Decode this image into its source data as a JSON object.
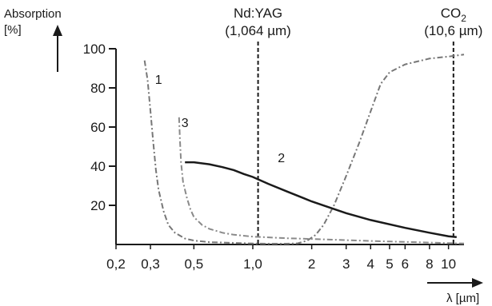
{
  "chart_data": {
    "type": "line",
    "xscale": "log",
    "xlim": [
      0.2,
      12
    ],
    "ylim": [
      0,
      100
    ],
    "ylabel_line1": "Absorption",
    "ylabel_line2": "[%]",
    "xlabel": "λ [µm]",
    "xticks": [
      {
        "value": 0.2,
        "label": "0,2"
      },
      {
        "value": 0.3,
        "label": "0,3"
      },
      {
        "value": 0.5,
        "label": "0,5"
      },
      {
        "value": 1.0,
        "label": "1,0"
      },
      {
        "value": 2,
        "label": "2"
      },
      {
        "value": 3,
        "label": "3"
      },
      {
        "value": 4,
        "label": "4"
      },
      {
        "value": 5,
        "label": "5"
      },
      {
        "value": 6,
        "label": "6"
      },
      {
        "value": 8,
        "label": "8"
      },
      {
        "value": 10,
        "label": "10"
      }
    ],
    "yticks": [
      {
        "value": 20,
        "label": "20"
      },
      {
        "value": 40,
        "label": "40"
      },
      {
        "value": 60,
        "label": "60"
      },
      {
        "value": 80,
        "label": "80"
      },
      {
        "value": 100,
        "label": "100"
      }
    ],
    "markers": [
      {
        "x": 1.064,
        "line1": "Nd:YAG",
        "line2": "(1,064 µm)"
      },
      {
        "x": 10.6,
        "line1_main": "CO",
        "line1_sub": "2",
        "line2": "(10,6 µm)"
      }
    ],
    "series": [
      {
        "label": "1",
        "style": "dashdot",
        "color": "#777777",
        "points": [
          [
            0.28,
            94
          ],
          [
            0.29,
            84
          ],
          [
            0.3,
            68
          ],
          [
            0.31,
            52
          ],
          [
            0.32,
            38
          ],
          [
            0.33,
            28
          ],
          [
            0.35,
            17
          ],
          [
            0.37,
            10
          ],
          [
            0.4,
            6
          ],
          [
            0.45,
            3
          ],
          [
            0.5,
            2
          ],
          [
            0.6,
            1.2
          ],
          [
            0.8,
            0.8
          ],
          [
            1.0,
            0.5
          ],
          [
            1.2,
            0.4
          ],
          [
            1.5,
            0.4
          ],
          [
            1.7,
            0.6
          ],
          [
            1.9,
            2
          ],
          [
            2.1,
            5
          ],
          [
            2.3,
            10
          ],
          [
            2.6,
            20
          ],
          [
            3.0,
            35
          ],
          [
            3.5,
            52
          ],
          [
            4.0,
            68
          ],
          [
            4.5,
            82
          ],
          [
            5.0,
            88
          ],
          [
            6.0,
            92
          ],
          [
            8.0,
            95
          ],
          [
            10.0,
            96
          ],
          [
            12.0,
            97
          ]
        ]
      },
      {
        "label": "2",
        "style": "solid",
        "color": "#1a1a1a",
        "points": [
          [
            0.45,
            42
          ],
          [
            0.5,
            42
          ],
          [
            0.6,
            41
          ],
          [
            0.7,
            39.5
          ],
          [
            0.8,
            38
          ],
          [
            0.9,
            36
          ],
          [
            1.0,
            34.5
          ],
          [
            1.2,
            31
          ],
          [
            1.5,
            27
          ],
          [
            2.0,
            22
          ],
          [
            3.0,
            16
          ],
          [
            4.0,
            12.5
          ],
          [
            6.0,
            8.5
          ],
          [
            8.0,
            6
          ],
          [
            10.0,
            4.2
          ],
          [
            11.0,
            3.8
          ]
        ]
      },
      {
        "label": "3",
        "style": "dashdot",
        "color": "#8a8a8a",
        "points": [
          [
            0.42,
            65
          ],
          [
            0.425,
            52
          ],
          [
            0.43,
            42
          ],
          [
            0.44,
            32
          ],
          [
            0.46,
            24
          ],
          [
            0.48,
            18
          ],
          [
            0.5,
            14
          ],
          [
            0.55,
            10
          ],
          [
            0.6,
            8
          ],
          [
            0.7,
            6
          ],
          [
            0.8,
            5
          ],
          [
            1.0,
            4
          ],
          [
            1.5,
            3.2
          ],
          [
            2.0,
            2.8
          ],
          [
            3.0,
            2.2
          ],
          [
            5.0,
            1.5
          ],
          [
            8.0,
            1.0
          ],
          [
            12.0,
            0.5
          ]
        ]
      }
    ]
  }
}
